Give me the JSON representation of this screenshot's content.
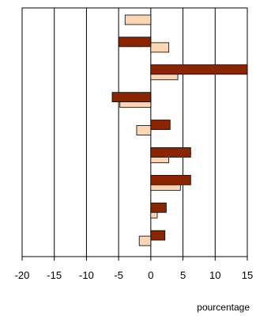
{
  "chart_data": {
    "type": "bar",
    "orientation": "horizontal",
    "xlabel": "pourcentage",
    "xlim": [
      -20,
      15
    ],
    "xticks": [
      "-20",
      "-15",
      "-10",
      "-5",
      "0",
      "5",
      "10",
      "15"
    ],
    "grid": "vertical",
    "legend": "none",
    "rows": 9,
    "series": [
      {
        "color": "#8b2500",
        "values": [
          null,
          -5,
          15,
          -6,
          3,
          6.2,
          6.2,
          2.4,
          2.2
        ]
      },
      {
        "color": "#fcd5b4",
        "values": [
          -4,
          2.8,
          4.2,
          -4.8,
          -2.2,
          2.8,
          4.6,
          1,
          -1.8
        ]
      }
    ]
  }
}
